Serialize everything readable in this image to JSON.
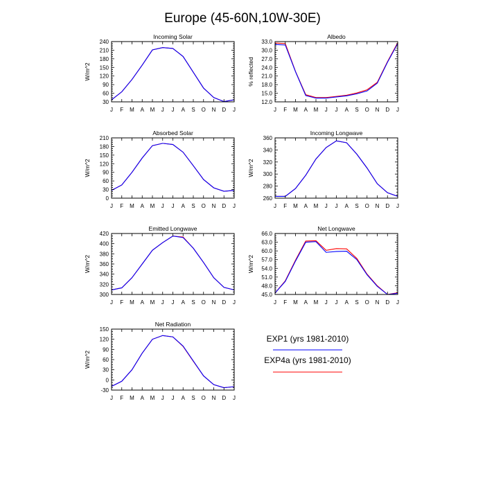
{
  "title": "Europe (45-60N,10W-30E)",
  "months": [
    "J",
    "F",
    "M",
    "A",
    "M",
    "J",
    "J",
    "A",
    "S",
    "O",
    "N",
    "D",
    "J"
  ],
  "series_styles": [
    {
      "name": "EXP1 (yrs 1981-2010)",
      "color": "#0000ff"
    },
    {
      "name": "EXP4a (yrs 1981-2010)",
      "color": "#ff0000"
    }
  ],
  "chart_data": [
    {
      "type": "line",
      "title": "Incoming Solar",
      "ylabel": "W/m^2",
      "ylim": [
        30,
        240
      ],
      "yticks": [
        30,
        60,
        90,
        120,
        150,
        180,
        210,
        240
      ],
      "ytick_labels": [
        "30",
        "60",
        "90",
        "120",
        "150",
        "180",
        "210",
        "240"
      ],
      "series": [
        {
          "values": [
            37,
            65,
            108,
            158,
            211,
            219,
            216,
            188,
            133,
            78,
            45,
            31,
            37
          ]
        },
        {
          "values": [
            37,
            65,
            108,
            158,
            211,
            219,
            216,
            188,
            133,
            78,
            45,
            31,
            37
          ]
        }
      ]
    },
    {
      "type": "line",
      "title": "Albedo",
      "ylabel": "% reflected",
      "ylim": [
        12,
        33
      ],
      "yticks": [
        12,
        15,
        18,
        21,
        24,
        27,
        30,
        33
      ],
      "ytick_labels": [
        "12.0",
        "15.0",
        "18.0",
        "21.0",
        "24.0",
        "27.0",
        "30.0",
        "33.0"
      ],
      "series": [
        {
          "values": [
            32.0,
            31.8,
            22.5,
            14.2,
            13.3,
            13.3,
            13.7,
            14.1,
            14.8,
            15.8,
            18.5,
            25.8,
            32.3
          ]
        },
        {
          "values": [
            32.5,
            32.3,
            22.6,
            14.5,
            13.5,
            13.5,
            13.9,
            14.3,
            15.1,
            16.2,
            18.8,
            26.0,
            32.6
          ]
        }
      ]
    },
    {
      "type": "line",
      "title": "Absorbed Solar",
      "ylabel": "W/m^2",
      "ylim": [
        0,
        210
      ],
      "yticks": [
        0,
        30,
        60,
        90,
        120,
        150,
        180,
        210
      ],
      "ytick_labels": [
        "0",
        "30",
        "60",
        "90",
        "120",
        "150",
        "180",
        "210"
      ],
      "series": [
        {
          "values": [
            27,
            46,
            90,
            140,
            183,
            191,
            187,
            160,
            113,
            65,
            36,
            24,
            27
          ]
        },
        {
          "values": [
            27,
            46,
            90,
            140,
            183,
            191,
            187,
            160,
            113,
            65,
            36,
            24,
            27
          ]
        }
      ]
    },
    {
      "type": "line",
      "title": "Incoming Longwave",
      "ylabel": "W/m^2",
      "ylim": [
        260,
        360
      ],
      "yticks": [
        260,
        280,
        300,
        320,
        340,
        360
      ],
      "ytick_labels": [
        "260",
        "280",
        "300",
        "320",
        "340",
        "360"
      ],
      "series": [
        {
          "values": [
            263,
            263,
            276,
            298,
            325,
            344,
            355,
            352,
            333,
            310,
            284,
            269,
            263
          ]
        },
        {
          "values": [
            263,
            263,
            276,
            298,
            325,
            344,
            355,
            352,
            333,
            310,
            284,
            269,
            263
          ]
        }
      ]
    },
    {
      "type": "line",
      "title": "Emitted Longwave",
      "ylabel": "W/m^2",
      "ylim": [
        300,
        420
      ],
      "yticks": [
        300,
        320,
        340,
        360,
        380,
        400,
        420
      ],
      "ytick_labels": [
        "300",
        "320",
        "340",
        "360",
        "380",
        "400",
        "420"
      ],
      "series": [
        {
          "values": [
            309,
            313,
            333,
            360,
            387,
            402,
            415,
            412,
            391,
            363,
            333,
            314,
            309
          ]
        },
        {
          "values": [
            309,
            313,
            333,
            360,
            387,
            402,
            415,
            413,
            391,
            363,
            333,
            314,
            309
          ]
        }
      ]
    },
    {
      "type": "line",
      "title": "Net Longwave",
      "ylabel": "W/m^2",
      "ylim": [
        45,
        66
      ],
      "yticks": [
        45,
        48,
        51,
        54,
        57,
        60,
        63,
        66
      ],
      "ytick_labels": [
        "45.0",
        "48.0",
        "51.0",
        "54.0",
        "57.0",
        "60.0",
        "63.0",
        "66.0"
      ],
      "series": [
        {
          "values": [
            45.5,
            49.5,
            56.5,
            63.0,
            63.2,
            59.5,
            59.8,
            59.9,
            57.0,
            51.8,
            47.8,
            45.0,
            45.4
          ]
        },
        {
          "values": [
            45.5,
            49.7,
            56.8,
            63.4,
            63.5,
            60.2,
            60.8,
            60.7,
            57.4,
            52.0,
            48.0,
            45.0,
            45.6
          ]
        }
      ]
    },
    {
      "type": "line",
      "title": "Net Radiation",
      "ylabel": "W/m^2",
      "ylim": [
        -30,
        150
      ],
      "yticks": [
        -30,
        0,
        30,
        60,
        90,
        120,
        150
      ],
      "ytick_labels": [
        "-30",
        "0",
        "30",
        "60",
        "90",
        "120",
        "150"
      ],
      "series": [
        {
          "values": [
            -19,
            -4,
            30,
            79,
            120,
            131,
            127,
            100,
            56,
            12,
            -14,
            -23,
            -20
          ]
        },
        {
          "values": [
            -19,
            -4,
            30,
            79,
            120,
            131,
            127,
            99,
            55,
            12,
            -14,
            -23,
            -20
          ]
        }
      ]
    }
  ]
}
